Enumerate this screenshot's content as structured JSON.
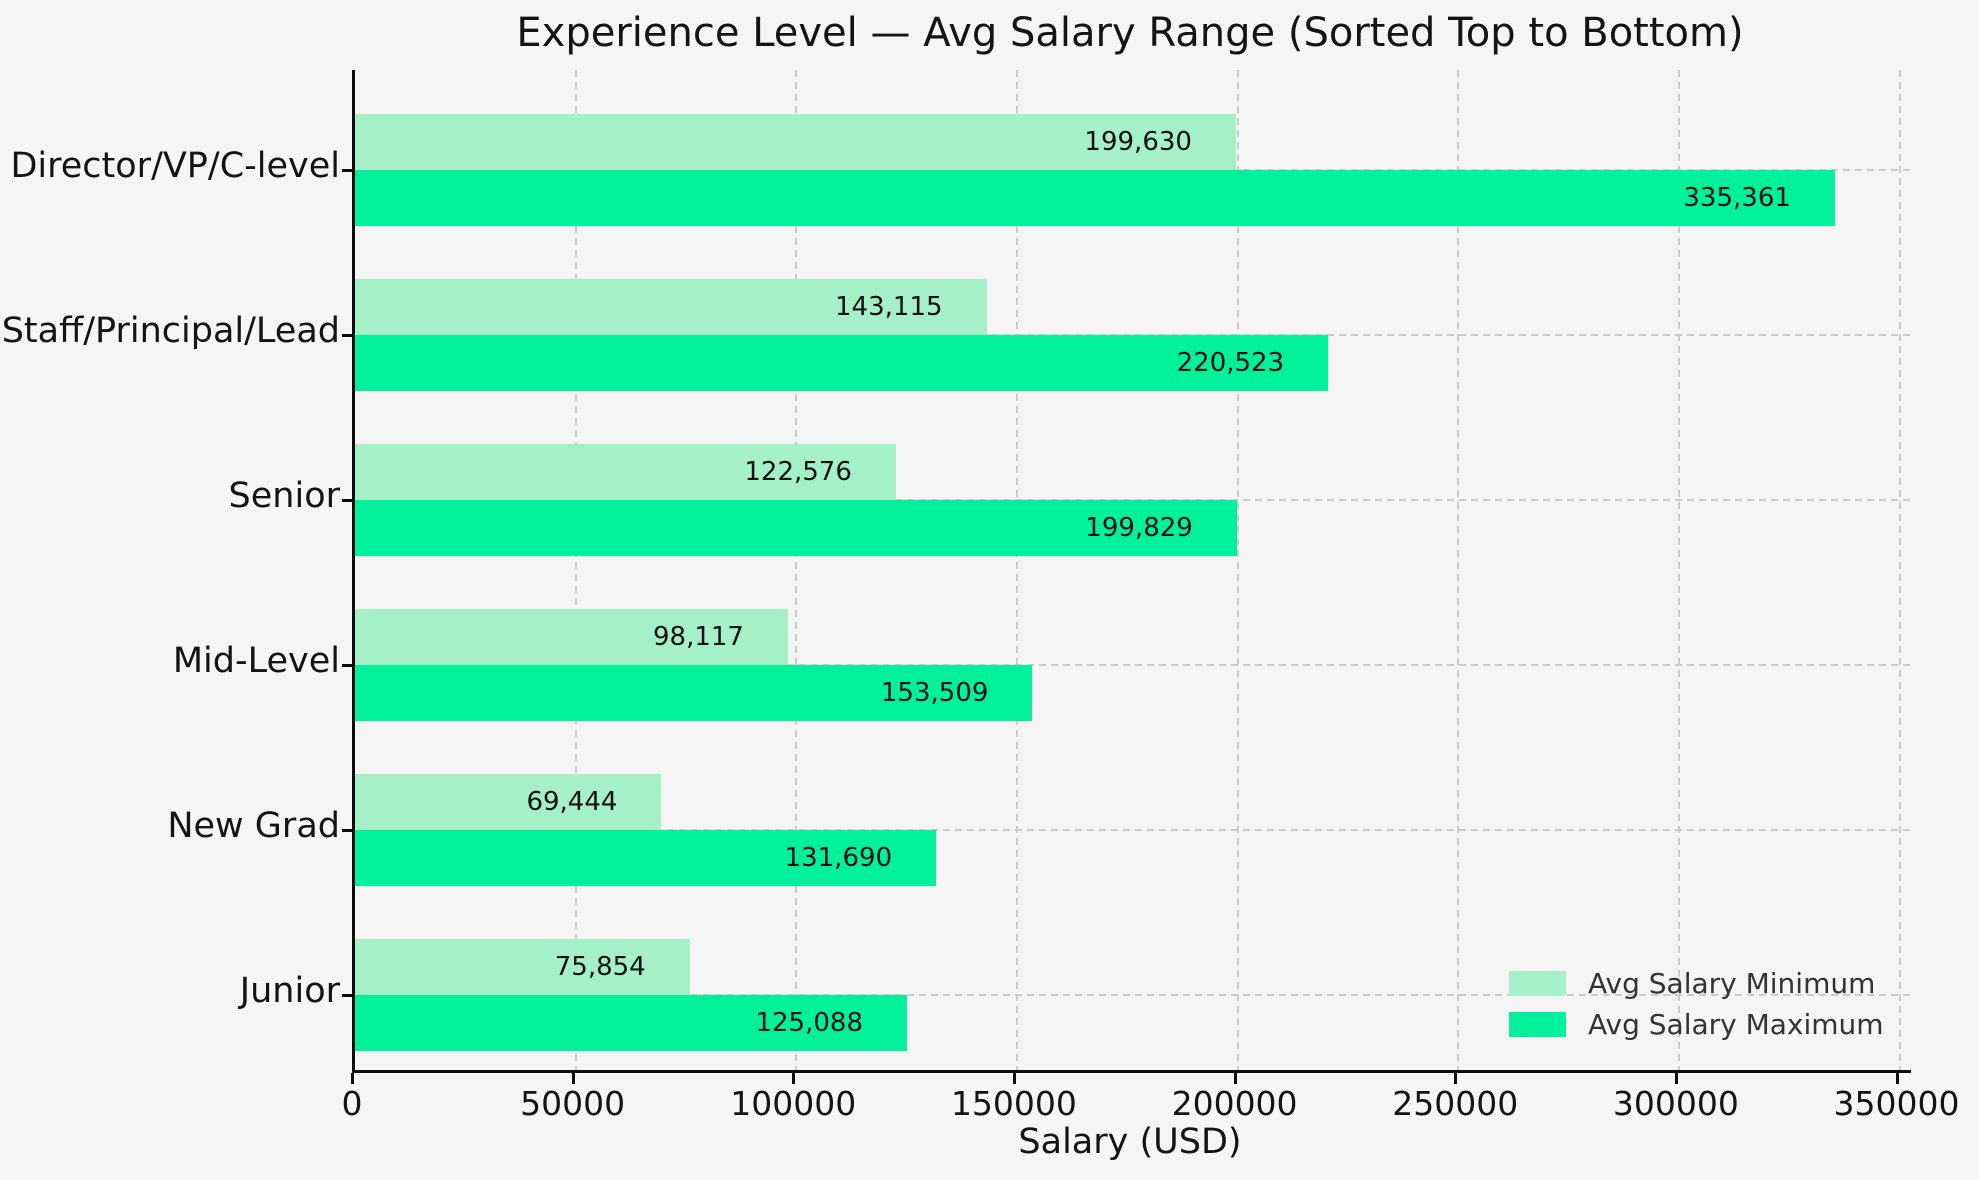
{
  "figure": {
    "title": "Experience Level — Avg Salary Range (Sorted Top to Bottom)",
    "xlabel": "Salary (USD)",
    "background_color": "#f5f5f5",
    "grid_color": "#cbcbcb",
    "spine_color": "#0d0d0d"
  },
  "chart_data": {
    "type": "bar",
    "orientation": "horizontal",
    "title": "Experience Level — Avg Salary Range (Sorted Top to Bottom)",
    "xlabel": "Salary (USD)",
    "ylabel": "",
    "categories": [
      "Director/VP/C-level",
      "Staff/Principal/Lead",
      "Senior",
      "Mid-Level",
      "New Grad",
      "Junior"
    ],
    "series": [
      {
        "name": "Avg Salary Minimum",
        "color": "#a5f0c6",
        "values": [
          199630,
          143115,
          122576,
          98117,
          69444,
          75854
        ],
        "labels": [
          "199,630",
          "143,115",
          "122,576",
          "98,117",
          "69,444",
          "75,854"
        ]
      },
      {
        "name": "Avg Salary Maximum",
        "color": "#00f09c",
        "values": [
          335361,
          220523,
          199829,
          153509,
          131690,
          125088
        ],
        "labels": [
          "335,361",
          "220,523",
          "199,829",
          "153,509",
          "131,690",
          "125,088"
        ]
      }
    ],
    "xlim": [
      0,
      352600
    ],
    "x_ticks": [
      0,
      50000,
      100000,
      150000,
      200000,
      250000,
      300000,
      350000
    ],
    "x_tick_labels": [
      "0",
      "50000",
      "100000",
      "150000",
      "200000",
      "250000",
      "300000",
      "350000"
    ],
    "grid": "dashed",
    "legend": {
      "position": "lower right",
      "entries": [
        "Avg Salary Minimum",
        "Avg Salary Maximum"
      ]
    }
  }
}
